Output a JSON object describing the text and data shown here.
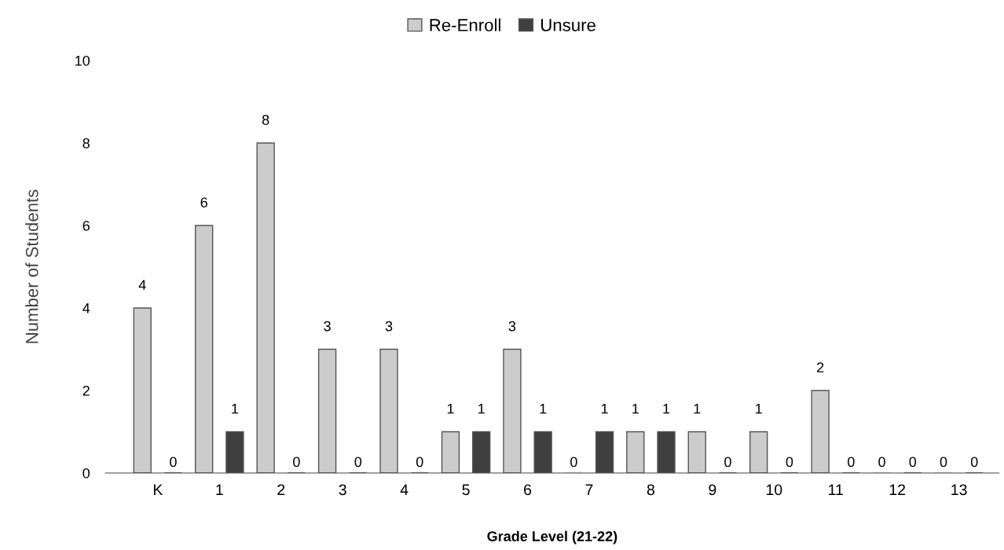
{
  "chart_data": {
    "type": "bar",
    "xlabel": "Grade Level (21-22)",
    "ylabel": "Number of Students",
    "categories": [
      "K",
      "1",
      "2",
      "3",
      "4",
      "5",
      "6",
      "7",
      "8",
      "9",
      "10",
      "11",
      "12",
      "13"
    ],
    "series": [
      {
        "name": "Re-Enroll",
        "color": "#cccccc",
        "values": [
          4,
          6,
          8,
          3,
          3,
          1,
          3,
          0,
          1,
          1,
          1,
          2,
          0,
          0
        ]
      },
      {
        "name": "Unsure",
        "color": "#3f3f3f",
        "values": [
          0,
          1,
          0,
          0,
          0,
          1,
          1,
          1,
          1,
          0,
          0,
          0,
          0,
          0
        ]
      }
    ],
    "ylim": [
      0,
      10
    ],
    "yticks": [
      0,
      2,
      4,
      6,
      8,
      10
    ],
    "data_labels": true,
    "grid": false,
    "legend": "top"
  }
}
